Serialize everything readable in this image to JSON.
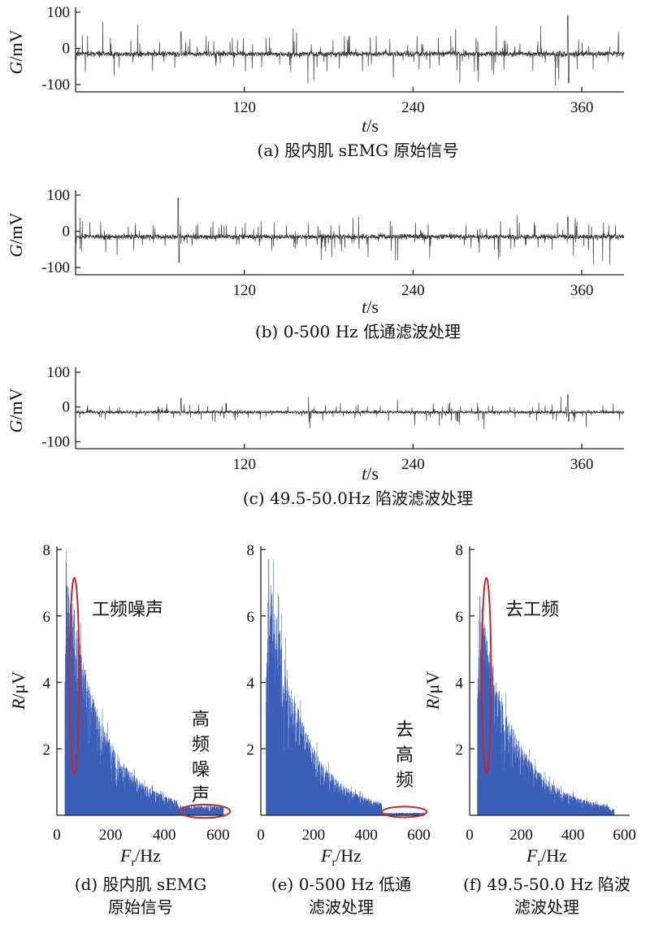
{
  "chart_data": [
    {
      "type": "line",
      "panel": "a",
      "caption": "(a) 股内肌 sEMG 原始信号",
      "ylabel_var": "G",
      "ylabel_unit": "/mV",
      "xlabel_var": "t",
      "xlabel_unit": "/s",
      "xlim": [
        0,
        390
      ],
      "ylim": [
        -120,
        100
      ],
      "yticks": [
        100,
        0,
        -100
      ],
      "xticks": [
        120,
        240,
        360
      ],
      "signal": {
        "duration_s": 390,
        "baseline_mV": -15,
        "noise_mV": 10,
        "spike_typical_mV": 32,
        "spike_max_mV": 105,
        "peak_t_s": 350,
        "peak_mV": 90,
        "second_peak_t_s": 75,
        "second_peak_mV": 45
      },
      "color": "#3a3a3a"
    },
    {
      "type": "line",
      "panel": "b",
      "caption": "(b) 0-500 Hz 低通滤波处理",
      "ylabel_var": "G",
      "ylabel_unit": "/mV",
      "xlabel_var": "t",
      "xlabel_unit": "/s",
      "xlim": [
        0,
        390
      ],
      "ylim": [
        -120,
        100
      ],
      "yticks": [
        100,
        0,
        -100
      ],
      "xticks": [
        120,
        240,
        360
      ],
      "signal": {
        "duration_s": 390,
        "baseline_mV": -15,
        "noise_mV": 9,
        "spike_typical_mV": 28,
        "spike_max_mV": 95,
        "peak_t_s": 73,
        "peak_mV": 92,
        "second_peak_t_s": 350,
        "second_peak_mV": 40
      },
      "color": "#3a3a3a"
    },
    {
      "type": "line",
      "panel": "c",
      "caption": "(c) 49.5-50.0Hz 陷波滤波处理",
      "ylabel_var": "G",
      "ylabel_unit": "/mV",
      "xlabel_var": "t",
      "xlabel_unit": "/s",
      "xlim": [
        0,
        390
      ],
      "ylim": [
        -120,
        100
      ],
      "yticks": [
        100,
        0,
        -100
      ],
      "xticks": [
        120,
        240,
        360
      ],
      "signal": {
        "duration_s": 390,
        "baseline_mV": -15,
        "noise_mV": 6,
        "spike_typical_mV": 18,
        "spike_max_mV": 45,
        "peak_t_s": 350,
        "peak_mV": 35,
        "second_peak_t_s": 75,
        "second_peak_mV": 25
      },
      "color": "#3a3a3a"
    },
    {
      "type": "bar",
      "panel": "d",
      "caption_lines": [
        "(d) 股内肌 sEMG",
        "原始信号"
      ],
      "ylabel_var": "R",
      "ylabel_unit": "/μV",
      "xlabel_var": "F",
      "xlabel_sub": "r",
      "xlabel_unit": "/Hz",
      "xlim": [
        0,
        620
      ],
      "ylim": [
        0,
        8
      ],
      "yticks": [
        2,
        4,
        6,
        8
      ],
      "xticks": [
        0,
        200,
        400,
        600
      ],
      "spectrum": {
        "f_start_Hz": 30,
        "f_end_Hz": 620,
        "peak_at_Hz": 35,
        "peak_uV": 7.6,
        "decay_Hz": 130,
        "floor_uV": 0.15,
        "tail_cutoff_Hz": 450,
        "tail_uV": 0.3,
        "line_noise_Hz": 65,
        "line_noise_uV": 6.2
      },
      "annotations": [
        {
          "text": "工频噪声",
          "vertical": false
        },
        {
          "text": "高频噪声",
          "vertical": true
        }
      ],
      "ellipses": [
        {
          "cx_Hz": 65,
          "cy_uV": 4.2,
          "rx_Hz": 18,
          "ry_uV": 2.95
        },
        {
          "cx_Hz": 550,
          "cy_uV": 0.12,
          "rx_Hz": 95,
          "ry_uV": 0.2
        }
      ],
      "bar_color": "#3b5fb8",
      "ellipse_color": "#c0282d"
    },
    {
      "type": "bar",
      "panel": "e",
      "caption_lines": [
        "(e) 0-500 Hz 低通",
        "滤波处理"
      ],
      "ylabel_var": "",
      "ylabel_unit": "",
      "xlabel_var": "F",
      "xlabel_sub": "r",
      "xlabel_unit": "/Hz",
      "xlim": [
        0,
        620
      ],
      "ylim": [
        0,
        8
      ],
      "yticks": [
        2,
        4,
        6,
        8
      ],
      "xticks": [
        0,
        200,
        400,
        600
      ],
      "spectrum": {
        "f_start_Hz": 20,
        "f_end_Hz": 620,
        "peak_at_Hz": 30,
        "peak_uV": 7.7,
        "decay_Hz": 125,
        "floor_uV": 0.15,
        "tail_cutoff_Hz": 460,
        "tail_uV": 0.08,
        "line_noise_Hz": 0,
        "line_noise_uV": 0
      },
      "annotations": [
        {
          "text": "去高频",
          "vertical": true
        }
      ],
      "ellipses": [
        {
          "cx_Hz": 545,
          "cy_uV": 0.1,
          "rx_Hz": 85,
          "ry_uV": 0.16
        }
      ],
      "bar_color": "#3b5fb8",
      "ellipse_color": "#c0282d"
    },
    {
      "type": "bar",
      "panel": "f",
      "caption_lines": [
        "(f) 49.5-50.0 Hz 陷波",
        "滤波处理"
      ],
      "ylabel_var": "R",
      "ylabel_unit": "/μV",
      "xlabel_var": "F",
      "xlabel_sub": "r",
      "xlabel_unit": "/Hz",
      "xlim": [
        0,
        620
      ],
      "ylim": [
        0,
        8
      ],
      "yticks": [
        2,
        4,
        6,
        8
      ],
      "xticks": [
        0,
        200,
        400,
        600
      ],
      "spectrum": {
        "f_start_Hz": 30,
        "f_end_Hz": 560,
        "peak_at_Hz": 40,
        "peak_uV": 6.6,
        "decay_Hz": 135,
        "floor_uV": 0.15,
        "tail_cutoff_Hz": 540,
        "tail_uV": 0.2,
        "line_noise_Hz": 0,
        "line_noise_uV": 0
      },
      "annotations": [
        {
          "text": "去工频",
          "vertical": false
        }
      ],
      "ellipses": [
        {
          "cx_Hz": 65,
          "cy_uV": 4.2,
          "rx_Hz": 18,
          "ry_uV": 2.95
        }
      ],
      "bar_color": "#3b5fb8",
      "ellipse_color": "#c0282d"
    }
  ]
}
